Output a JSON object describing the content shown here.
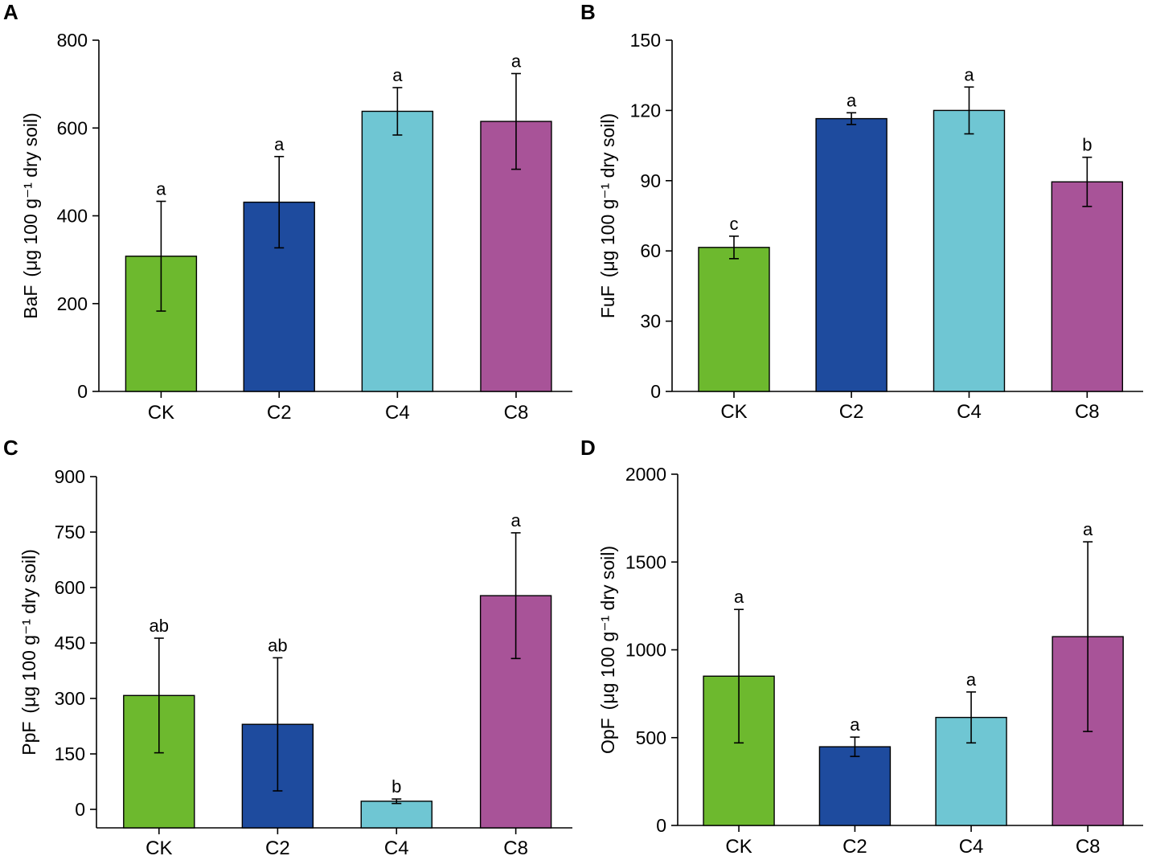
{
  "colors": {
    "CK": "#6db92e",
    "C2": "#1e4b9e",
    "C4": "#6fc6d3",
    "C8": "#a85398"
  },
  "ylabel_unit": "(μg 100 g⁻¹ dry soil)",
  "chart_data": [
    {
      "panel": "A",
      "type": "bar",
      "categories": [
        "CK",
        "C2",
        "C4",
        "C8"
      ],
      "values": [
        308,
        431,
        638,
        615
      ],
      "errors": [
        125,
        104,
        54,
        109
      ],
      "significance": [
        "a",
        "a",
        "a",
        "a"
      ],
      "ylabel": "BaF",
      "ylim": [
        0,
        800
      ],
      "yticks": [
        0,
        200,
        400,
        600,
        800
      ]
    },
    {
      "panel": "B",
      "type": "bar",
      "categories": [
        "CK",
        "C2",
        "C4",
        "C8"
      ],
      "values": [
        61.5,
        116.5,
        120,
        89.5
      ],
      "errors": [
        4.8,
        2.5,
        10,
        10.5
      ],
      "significance": [
        "c",
        "a",
        "a",
        "b"
      ],
      "ylabel": "FuF",
      "ylim": [
        0,
        150
      ],
      "yticks": [
        0,
        30,
        60,
        90,
        120,
        150
      ]
    },
    {
      "panel": "C",
      "type": "bar",
      "categories": [
        "CK",
        "C2",
        "C4",
        "C8"
      ],
      "values": [
        308,
        230,
        22,
        578
      ],
      "errors": [
        155,
        180,
        6,
        170
      ],
      "significance": [
        "ab",
        "ab",
        "b",
        "a"
      ],
      "ylabel": "PpF",
      "ylim": [
        -50,
        900
      ],
      "yticks": [
        0,
        150,
        300,
        450,
        600,
        750,
        900
      ]
    },
    {
      "panel": "D",
      "type": "bar",
      "categories": [
        "CK",
        "C2",
        "C4",
        "C8"
      ],
      "values": [
        850,
        448,
        615,
        1075
      ],
      "errors": [
        380,
        55,
        145,
        540
      ],
      "significance": [
        "a",
        "a",
        "a",
        "a"
      ],
      "ylabel": "OpF",
      "ylim": [
        0,
        2000
      ],
      "yticks": [
        0,
        500,
        1000,
        1500,
        2000
      ]
    }
  ]
}
